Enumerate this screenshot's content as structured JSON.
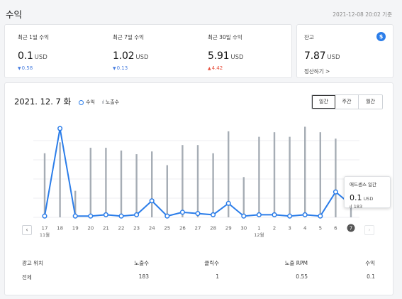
{
  "header": {
    "title": "수익",
    "timestamp": "2021-12-08 20:02 기준"
  },
  "stats": [
    {
      "label": "최근 1일 수익",
      "value": "0.1",
      "unit": "USD",
      "change": "0.58",
      "direction": "down"
    },
    {
      "label": "최근 7일 수익",
      "value": "1.02",
      "unit": "USD",
      "change": "0.13",
      "direction": "down"
    },
    {
      "label": "최근 30일 수익",
      "value": "5.91",
      "unit": "USD",
      "change": "4.42",
      "direction": "up"
    }
  ],
  "balance": {
    "label": "잔고",
    "value": "7.87",
    "unit": "USD",
    "link": "정산하기",
    "icon": "dollar-icon"
  },
  "chart_header": {
    "date": "2021. 12. 7 화",
    "legend_revenue": "수익",
    "legend_impressions": "노출수",
    "periods": [
      "일간",
      "주간",
      "월간"
    ],
    "active_period": "일간"
  },
  "chart_data": {
    "type": "line",
    "categories": [
      "17",
      "18",
      "19",
      "20",
      "21",
      "22",
      "23",
      "24",
      "25",
      "26",
      "27",
      "28",
      "29",
      "30",
      "1",
      "2",
      "3",
      "4",
      "5",
      "6",
      "7"
    ],
    "month_labels": [
      {
        "index": 0,
        "label": "11월"
      },
      {
        "index": 14,
        "label": "12월"
      }
    ],
    "series": [
      {
        "name": "수익",
        "kind": "line",
        "color": "#2b7de9",
        "values": [
          0.01,
          0.7,
          0.01,
          0.01,
          0.02,
          0.01,
          0.02,
          0.13,
          0.01,
          0.04,
          0.03,
          0.02,
          0.11,
          0.01,
          0.02,
          0.02,
          0.01,
          0.02,
          0.01,
          0.2,
          0.1
        ]
      },
      {
        "name": "노출수",
        "kind": "bar",
        "color": "#a6adb5",
        "values": [
          350,
          410,
          145,
          380,
          380,
          365,
          345,
          360,
          285,
          395,
          395,
          350,
          470,
          220,
          440,
          465,
          440,
          495,
          465,
          430,
          183
        ]
      }
    ],
    "highlight_index": 20,
    "grid": true
  },
  "tooltip": {
    "title": "애드센스 일간",
    "value": "0.1",
    "unit": "USD",
    "impressions": "183"
  },
  "table": {
    "headers": [
      "광고 위치",
      "노출수",
      "클릭수",
      "노출 RPM",
      "수익"
    ],
    "rows": [
      [
        "전체",
        "183",
        "1",
        "0.55",
        "0.1"
      ]
    ]
  }
}
